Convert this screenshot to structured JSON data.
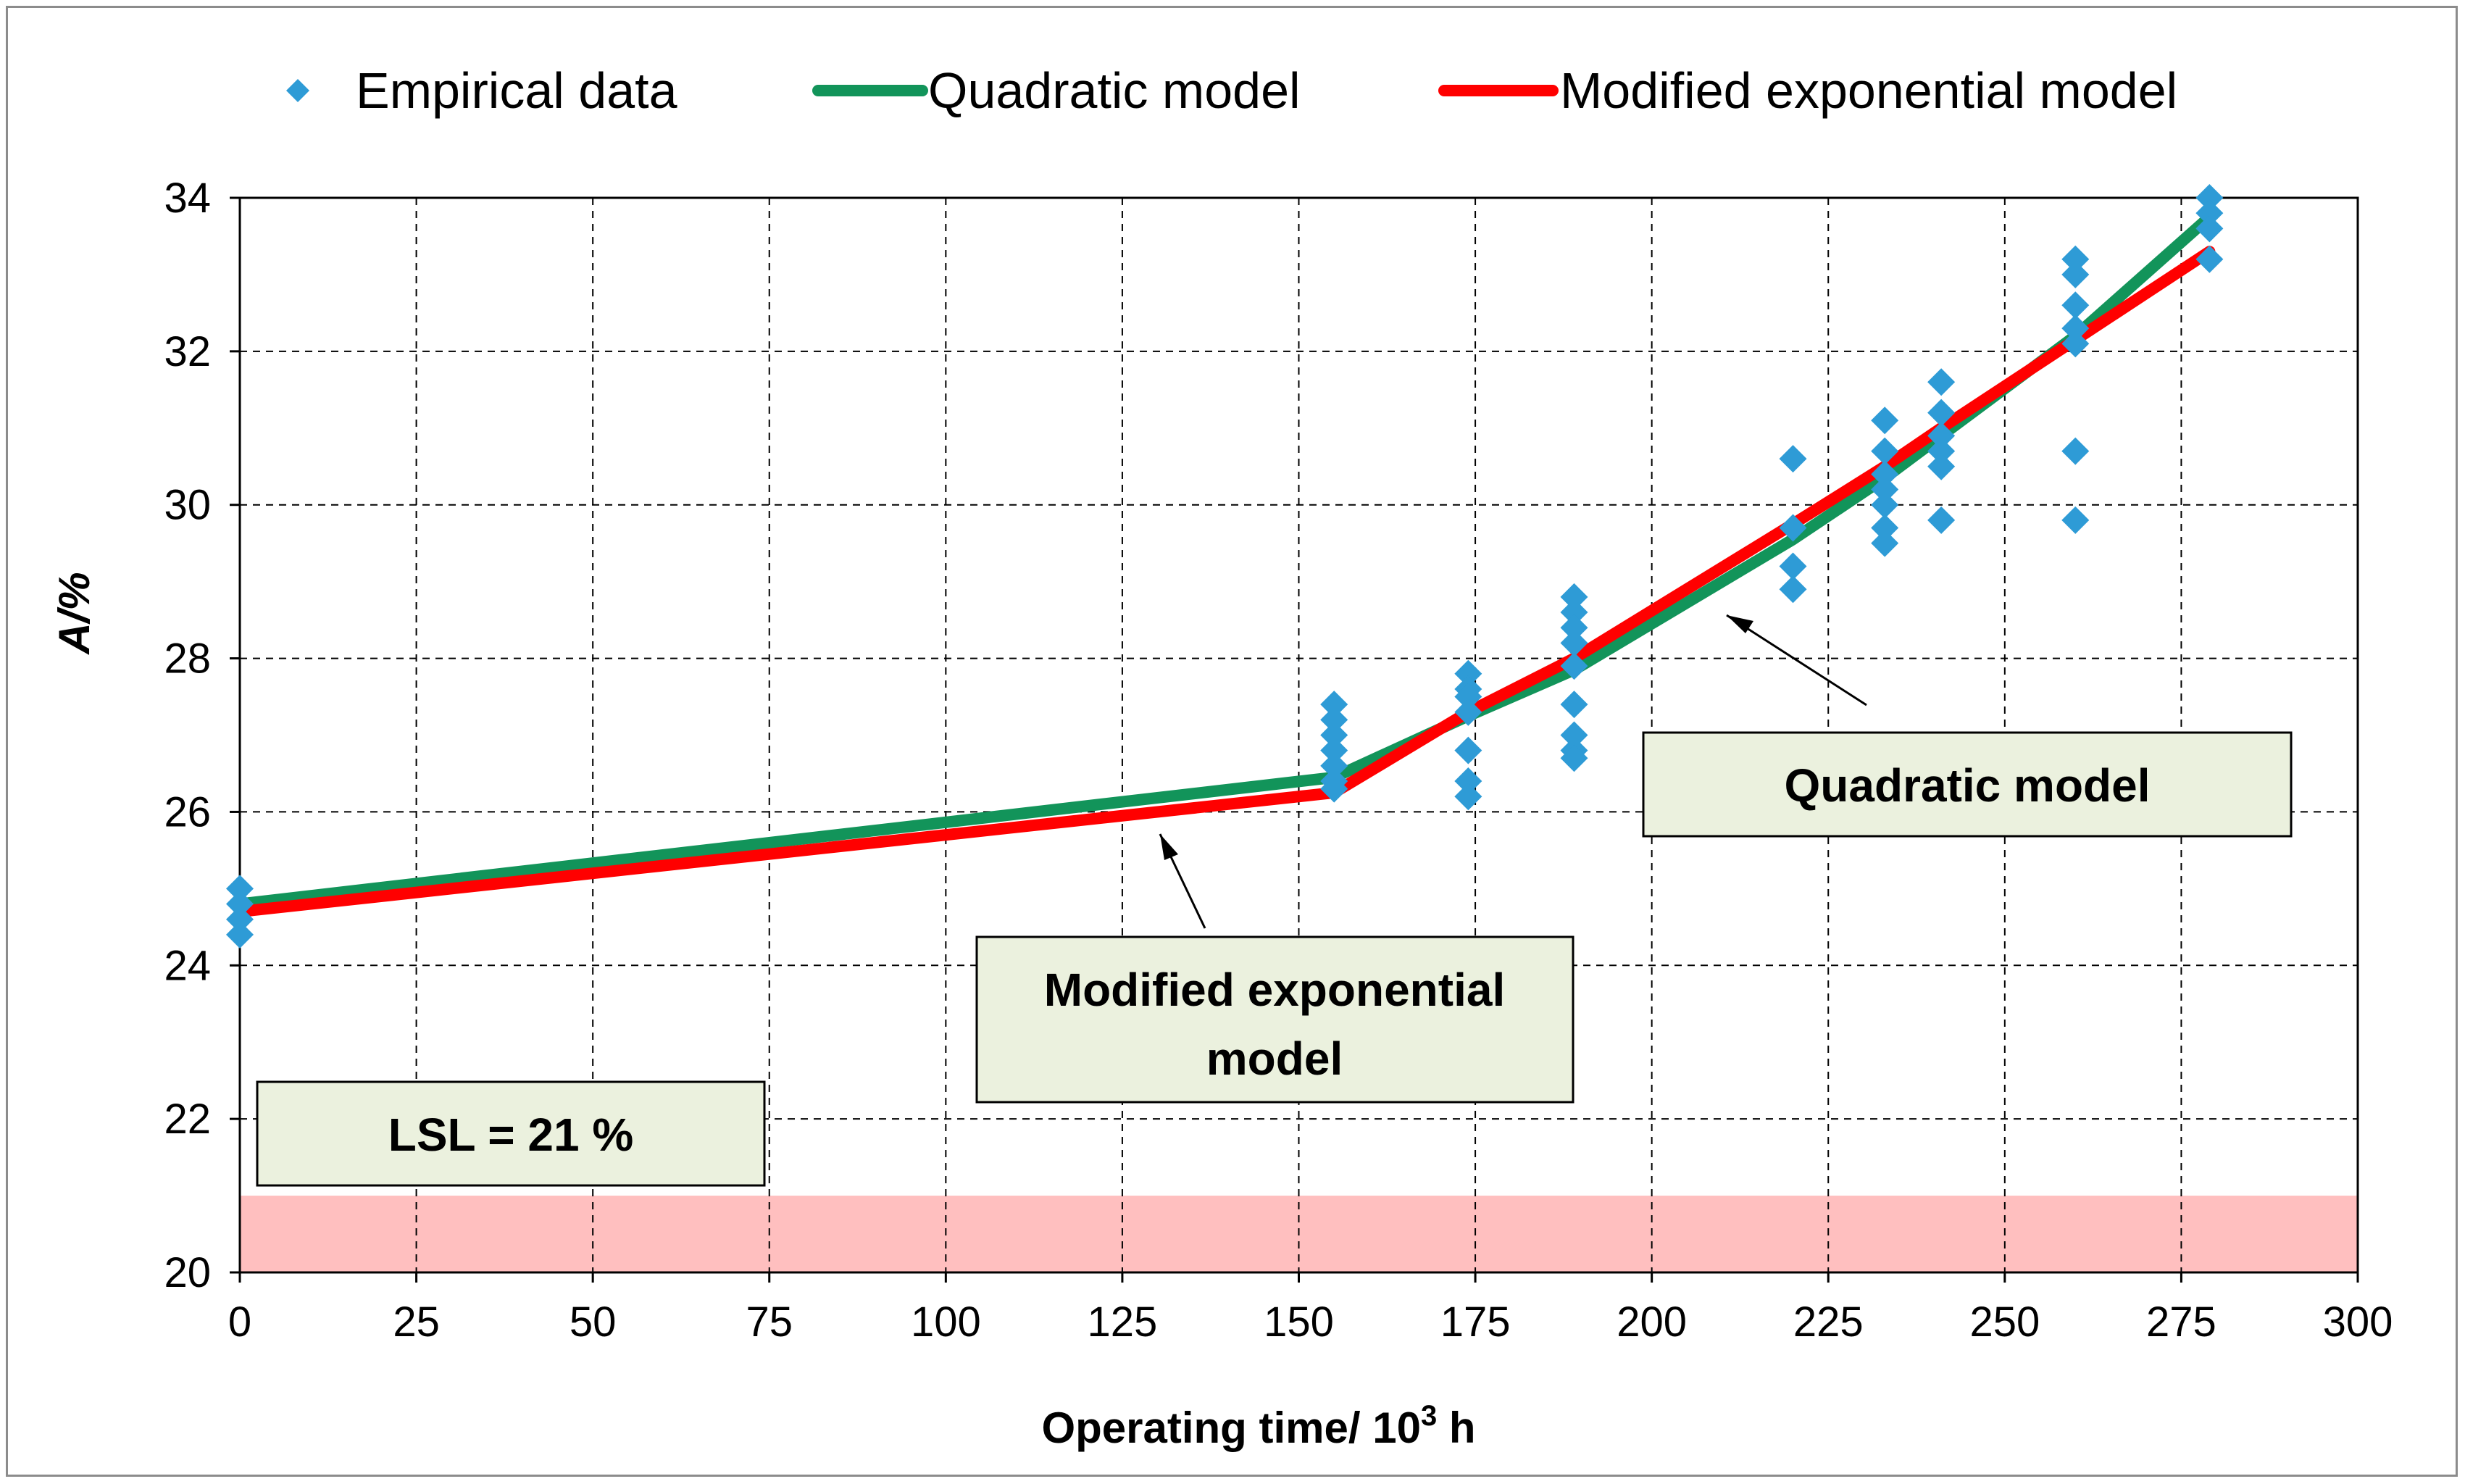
{
  "chart_data": {
    "type": "scatter",
    "title": "",
    "xlabel": "Operating time/ 10",
    "xlabel_sup": "3",
    "xlabel_suffix": " h",
    "ylabel": "A/%",
    "xlim": [
      0,
      300
    ],
    "ylim": [
      20,
      34
    ],
    "xticks": [
      0,
      25,
      50,
      75,
      100,
      125,
      150,
      175,
      200,
      225,
      250,
      275,
      300
    ],
    "yticks": [
      20,
      22,
      24,
      26,
      28,
      30,
      32,
      34
    ],
    "grid": true,
    "legend_position": "top",
    "colors": {
      "empirical": "#2e9bd6",
      "quadratic": "#12945a",
      "exponential": "#ff0000",
      "lsl_band": "#ffbfbf",
      "annotation_fill": "#ebf1de"
    },
    "series": [
      {
        "name": "Empirical data",
        "kind": "scatter",
        "points": [
          [
            0,
            25.0
          ],
          [
            0,
            24.8
          ],
          [
            0,
            24.6
          ],
          [
            0,
            24.4
          ],
          [
            155,
            27.4
          ],
          [
            155,
            27.2
          ],
          [
            155,
            27.0
          ],
          [
            155,
            26.8
          ],
          [
            155,
            26.6
          ],
          [
            155,
            26.4
          ],
          [
            155,
            26.3
          ],
          [
            174,
            27.8
          ],
          [
            174,
            27.6
          ],
          [
            174,
            27.5
          ],
          [
            174,
            27.3
          ],
          [
            174,
            26.8
          ],
          [
            174,
            26.4
          ],
          [
            174,
            26.2
          ],
          [
            189,
            28.8
          ],
          [
            189,
            28.6
          ],
          [
            189,
            28.4
          ],
          [
            189,
            28.2
          ],
          [
            189,
            27.9
          ],
          [
            189,
            27.4
          ],
          [
            189,
            27.0
          ],
          [
            189,
            26.8
          ],
          [
            189,
            26.7
          ],
          [
            220,
            30.6
          ],
          [
            220,
            29.7
          ],
          [
            220,
            29.2
          ],
          [
            220,
            28.9
          ],
          [
            233,
            31.1
          ],
          [
            233,
            30.7
          ],
          [
            233,
            30.4
          ],
          [
            233,
            30.2
          ],
          [
            233,
            30.0
          ],
          [
            233,
            29.7
          ],
          [
            233,
            29.5
          ],
          [
            241,
            31.6
          ],
          [
            241,
            31.2
          ],
          [
            241,
            30.9
          ],
          [
            241,
            30.7
          ],
          [
            241,
            30.5
          ],
          [
            241,
            29.8
          ],
          [
            260,
            33.2
          ],
          [
            260,
            33.0
          ],
          [
            260,
            32.6
          ],
          [
            260,
            32.3
          ],
          [
            260,
            32.1
          ],
          [
            260,
            30.7
          ],
          [
            260,
            29.8
          ],
          [
            279,
            34.0
          ],
          [
            279,
            33.8
          ],
          [
            279,
            33.6
          ],
          [
            279,
            33.2
          ]
        ]
      },
      {
        "name": "Quadratic model",
        "kind": "line",
        "x": [
          0,
          155,
          174,
          189,
          220,
          233,
          241,
          260,
          279
        ],
        "values": [
          24.8,
          26.45,
          27.25,
          27.85,
          29.55,
          30.35,
          30.9,
          32.2,
          33.75
        ]
      },
      {
        "name": "Modified exponential model",
        "kind": "line",
        "x": [
          0,
          155,
          174,
          189,
          220,
          233,
          241,
          260,
          279
        ],
        "values": [
          24.7,
          26.25,
          27.3,
          28.0,
          29.75,
          30.5,
          31.0,
          32.15,
          33.3
        ]
      }
    ],
    "lsl": {
      "value": 21,
      "band": [
        20,
        21
      ]
    },
    "annotations": {
      "lsl_label": "LSL = 21 %",
      "quadratic_label": "Quadratic model",
      "exponential_label_line1": "Modified exponential",
      "exponential_label_line2": "model"
    }
  }
}
